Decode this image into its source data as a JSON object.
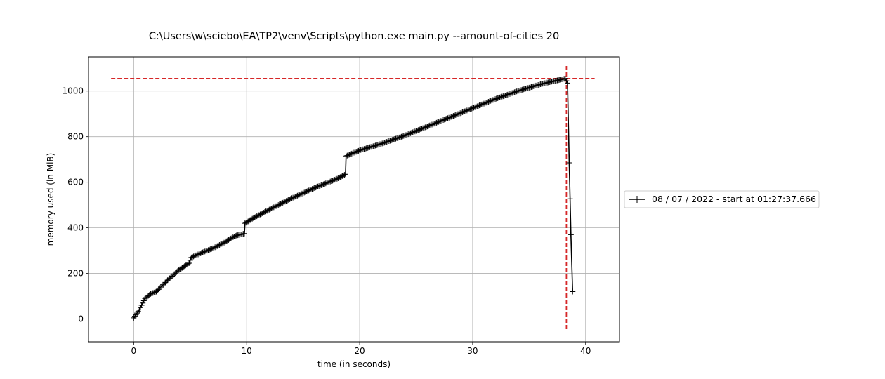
{
  "chart_data": {
    "type": "line",
    "title": "C:\\Users\\w\\sciebo\\EA\\TP2\\venv\\Scripts\\python.exe main.py --amount-of-cities 20",
    "xlabel": "time (in seconds)",
    "ylabel": "memory used (in MiB)",
    "xlim": [
      -4,
      43
    ],
    "ylim": [
      -100,
      1150
    ],
    "x_ticks": [
      0,
      10,
      20,
      30,
      40
    ],
    "y_ticks": [
      0,
      200,
      400,
      600,
      800,
      1000
    ],
    "grid": true,
    "legend_placement": "right, outside plot",
    "series": [
      {
        "name": "08 / 07 / 2022 - start at 01:27:37.666",
        "color": "#000000",
        "marker": "+",
        "anchors_x": [
          0.0,
          0.5,
          1.0,
          1.5,
          2.0,
          3.0,
          4.0,
          4.9,
          5.1,
          6.0,
          7.0,
          8.0,
          9.0,
          9.8,
          9.85,
          10.5,
          12.0,
          14.0,
          16.0,
          18.0,
          18.75,
          18.8,
          20.0,
          22.0,
          24.0,
          26.0,
          28.0,
          30.0,
          32.0,
          34.0,
          36.0,
          38.2,
          38.4,
          38.55,
          38.7,
          38.85
        ],
        "anchors_y": [
          5,
          40,
          90,
          110,
          120,
          170,
          215,
          245,
          270,
          290,
          310,
          335,
          365,
          375,
          420,
          440,
          480,
          530,
          575,
          615,
          635,
          715,
          740,
          770,
          805,
          845,
          885,
          925,
          965,
          1000,
          1030,
          1055,
          1035,
          685,
          370,
          120
        ]
      }
    ],
    "reference_lines": [
      {
        "orientation": "horizontal",
        "value": 1055,
        "color": "#d62728",
        "style": "dashed"
      },
      {
        "orientation": "vertical",
        "value": 38.3,
        "color": "#d62728",
        "style": "dashed"
      }
    ]
  }
}
